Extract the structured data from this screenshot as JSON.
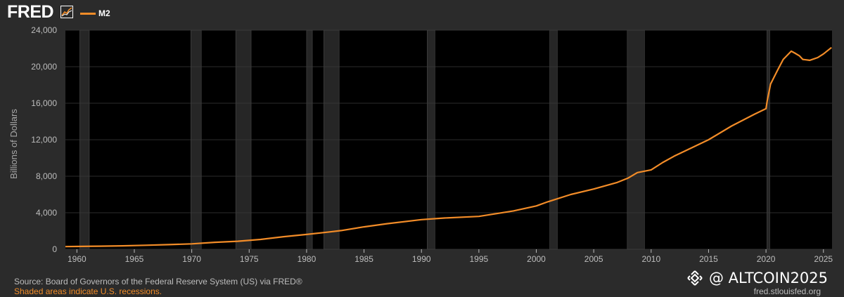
{
  "brand": {
    "logo_text": "FRED",
    "logo_icon": "trend-chart-icon"
  },
  "legend": {
    "series_label": "M2"
  },
  "colors": {
    "line": "#f28c28",
    "plot_bg": "#000000",
    "page_bg": "#2b2b2b",
    "recession": "#262626",
    "grid": "#3a3a3a",
    "text": "#bdbdbd"
  },
  "footer": {
    "source": "Source: Board of Governors of the Federal Reserve System (US) via FRED®",
    "shaded_note": "Shaded areas indicate U.S. recessions.",
    "url": "fred.stlouisfed.org"
  },
  "watermark": {
    "text": "@ ALTCOIN2025",
    "icon": "binance-logo-icon"
  },
  "chart_data": {
    "type": "line",
    "title": "",
    "xlabel": "",
    "ylabel": "Billions of Dollars",
    "xlim": [
      1959.0,
      2025.75
    ],
    "ylim": [
      0,
      24000
    ],
    "x_ticks": [
      1960,
      1965,
      1970,
      1975,
      1980,
      1985,
      1990,
      1995,
      2000,
      2005,
      2010,
      2015,
      2020,
      2025
    ],
    "y_ticks": [
      0,
      4000,
      8000,
      12000,
      16000,
      20000,
      24000
    ],
    "y_tick_labels": [
      "0",
      "4,000",
      "8,000",
      "12,000",
      "16,000",
      "20,000",
      "24,000"
    ],
    "grid": true,
    "legend_position": "top-left",
    "recessions": [
      [
        1960.25,
        1961.08
      ],
      [
        1969.92,
        1970.83
      ],
      [
        1973.83,
        1975.17
      ],
      [
        1980.0,
        1980.5
      ],
      [
        1981.5,
        1982.83
      ],
      [
        1990.5,
        1991.17
      ],
      [
        2001.17,
        2001.83
      ],
      [
        2007.92,
        2009.42
      ],
      [
        2020.08,
        2020.33
      ]
    ],
    "series": [
      {
        "name": "M2",
        "x": [
          1959.0,
          1960,
          1962,
          1964,
          1966,
          1968,
          1970,
          1972,
          1974,
          1976,
          1978,
          1980,
          1982,
          1983,
          1985,
          1987,
          1990,
          1992,
          1995,
          1998,
          2000,
          2001,
          2003,
          2005,
          2007,
          2008,
          2008.8,
          2010,
          2011,
          2012,
          2013,
          2015,
          2017,
          2019,
          2020.0,
          2020.1,
          2020.4,
          2021,
          2021.5,
          2022.2,
          2022.5,
          2022.9,
          2023.2,
          2023.8,
          2024.5,
          2025.0,
          2025.7
        ],
        "y": [
          290,
          305,
          335,
          380,
          440,
          510,
          590,
          760,
          880,
          1080,
          1380,
          1620,
          1900,
          2050,
          2450,
          2800,
          3250,
          3420,
          3600,
          4200,
          4750,
          5200,
          6000,
          6600,
          7300,
          7800,
          8400,
          8700,
          9500,
          10200,
          10800,
          12000,
          13500,
          14800,
          15400,
          16200,
          18100,
          19600,
          20800,
          21700,
          21500,
          21200,
          20800,
          20700,
          21000,
          21400,
          22100
        ]
      }
    ]
  }
}
